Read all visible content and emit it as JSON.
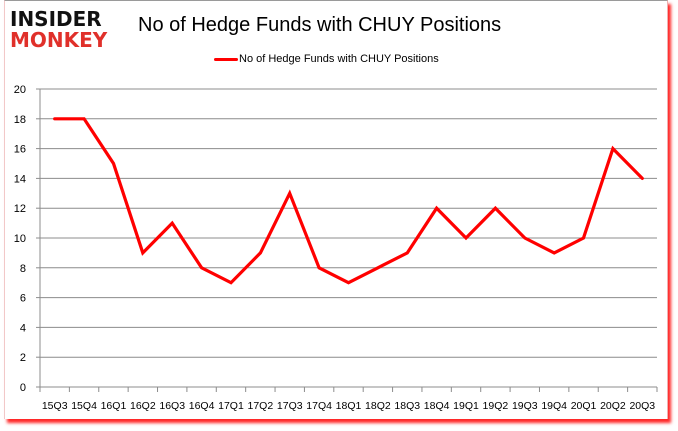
{
  "logo": {
    "line1": "INSIDER",
    "line2": "MONKEY"
  },
  "title": "No of Hedge Funds with CHUY Positions",
  "legend": {
    "label": "No of Hedge Funds with CHUY Positions",
    "color": "#ff0000"
  },
  "colors": {
    "line": "#ff0000",
    "grid": "#8c8c8c",
    "axis": "#8c8c8c",
    "frame_shadow": "#ff0000"
  },
  "chart_data": {
    "type": "line",
    "title": "No of Hedge Funds with CHUY Positions",
    "xlabel": "",
    "ylabel": "",
    "ylim": [
      0,
      20
    ],
    "yticks": [
      0,
      2,
      4,
      6,
      8,
      10,
      12,
      14,
      16,
      18,
      20
    ],
    "grid": true,
    "legend_position": "top",
    "categories": [
      "15Q3",
      "15Q4",
      "16Q1",
      "16Q2",
      "16Q3",
      "16Q4",
      "17Q1",
      "17Q2",
      "17Q3",
      "17Q4",
      "18Q1",
      "18Q2",
      "18Q3",
      "18Q4",
      "19Q1",
      "19Q2",
      "19Q3",
      "19Q4",
      "20Q1",
      "20Q2",
      "20Q3"
    ],
    "series": [
      {
        "name": "No of Hedge Funds with CHUY Positions",
        "color": "#ff0000",
        "values": [
          18,
          18,
          15,
          9,
          11,
          8,
          7,
          9,
          13,
          8,
          7,
          8,
          9,
          12,
          10,
          12,
          10,
          9,
          10,
          16,
          14
        ]
      }
    ]
  }
}
